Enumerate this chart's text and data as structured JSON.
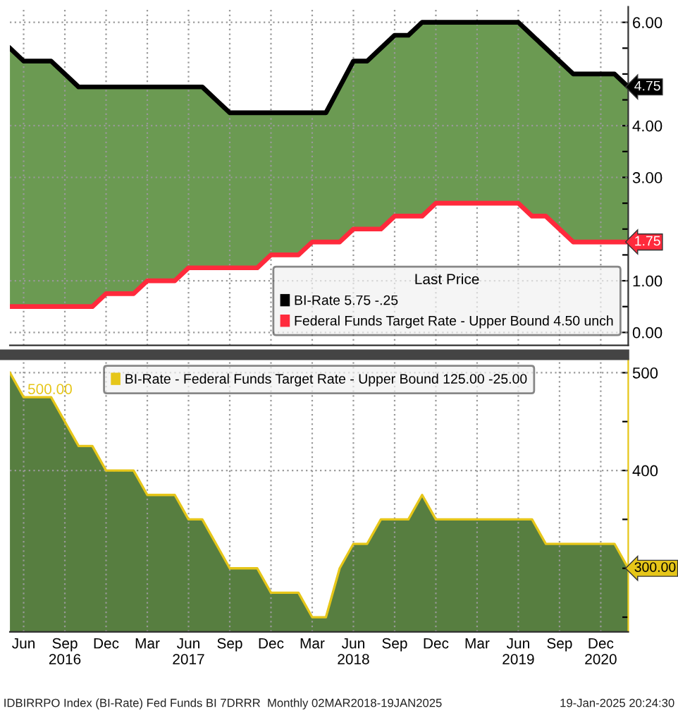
{
  "chart_data": [
    {
      "type": "line",
      "categories": [
        null,
        null,
        null,
        null,
        null,
        null,
        null,
        null,
        null,
        null,
        null,
        null,
        null,
        null,
        null,
        null,
        null,
        null,
        null,
        null,
        null,
        null,
        null,
        null,
        null,
        null,
        null,
        null,
        null,
        null,
        null,
        null,
        null,
        null,
        null,
        null,
        null,
        null,
        null,
        null,
        null,
        null,
        null,
        null,
        null,
        null
      ],
      "series": [
        {
          "name": "BI-Rate 5.75 -.25",
          "color": "#000000",
          "values": [
            5.5,
            5.25,
            5.25,
            5.25,
            5.0,
            4.75,
            4.75,
            4.75,
            4.75,
            4.75,
            4.75,
            4.75,
            4.75,
            4.75,
            4.75,
            4.5,
            4.25,
            4.25,
            4.25,
            4.25,
            4.25,
            4.25,
            4.25,
            4.25,
            4.75,
            5.25,
            5.25,
            5.5,
            5.75,
            5.75,
            6.0,
            6.0,
            6.0,
            6.0,
            6.0,
            6.0,
            6.0,
            6.0,
            5.75,
            5.5,
            5.25,
            5.0,
            5.0,
            5.0,
            5.0,
            4.75
          ],
          "upper": [
            5.5,
            5.25,
            5.25,
            5.25,
            5.0,
            4.75,
            4.75,
            4.75,
            4.75,
            4.75,
            4.75,
            4.75,
            4.75,
            4.75,
            4.75,
            4.5,
            4.25,
            4.25,
            4.25,
            4.25,
            4.25,
            4.25,
            4.25,
            4.25,
            4.75,
            5.25,
            5.25,
            5.5,
            5.75,
            5.75,
            6.0,
            6.0,
            6.0,
            6.0,
            6.0,
            6.0,
            6.0,
            6.0,
            5.75,
            5.5,
            5.25,
            5.0,
            5.0,
            5.0,
            5.0,
            4.75
          ],
          "lower": [
            0.5,
            0.5,
            0.5,
            0.5,
            0.5,
            0.5,
            0.5,
            0.75,
            0.75,
            0.75,
            1.0,
            1.0,
            1.0,
            1.25,
            1.25,
            1.25,
            1.25,
            1.25,
            1.25,
            1.5,
            1.5,
            1.5,
            1.75,
            1.75,
            1.75,
            2.0,
            2.0,
            2.0,
            2.25,
            2.25,
            2.25,
            2.5,
            2.5,
            2.5,
            2.5,
            2.5,
            2.5,
            2.5,
            2.25,
            2.25,
            2.0,
            1.75,
            1.75,
            1.75,
            1.75,
            1.75
          ]
        },
        {
          "name": "Federal Funds Target Rate - Upper Bound 4.50 unch",
          "color": "#ff2a3c",
          "values": [
            0.5,
            0.5,
            0.5,
            0.5,
            0.5,
            0.5,
            0.5,
            0.75,
            0.75,
            0.75,
            1.0,
            1.0,
            1.0,
            1.25,
            1.25,
            1.25,
            1.25,
            1.25,
            1.25,
            1.5,
            1.5,
            1.5,
            1.75,
            1.75,
            1.75,
            2.0,
            2.0,
            2.0,
            2.25,
            2.25,
            2.25,
            2.5,
            2.5,
            2.5,
            2.5,
            2.5,
            2.5,
            2.5,
            2.25,
            2.25,
            2.0,
            1.75,
            1.75,
            1.75,
            1.75,
            1.75
          ]
        }
      ],
      "ylim": [
        -0.25,
        6.3
      ],
      "yticks": [
        {
          "value": 0,
          "label": "0.00"
        },
        {
          "value": 0.5,
          "label": null
        },
        {
          "value": 1,
          "label": "1.00"
        },
        {
          "value": 1.5,
          "label": null
        },
        {
          "value": 2,
          "label": null
        },
        {
          "value": 2.5,
          "label": null
        },
        {
          "value": 3,
          "label": "3.00"
        },
        {
          "value": 3.5,
          "label": null
        },
        {
          "value": 4,
          "label": "4.00"
        },
        {
          "value": 4.5,
          "label": null
        },
        {
          "value": 5,
          "label": null
        },
        {
          "value": 5.5,
          "label": null
        },
        {
          "value": 6,
          "label": "6.00"
        }
      ],
      "legend_title": "Last Price",
      "legend": "bottom right",
      "grid": true,
      "tick_labels": "y",
      "annotations": [
        "4.75",
        "1.75"
      ]
    },
    {
      "type": "area",
      "categories": [
        null,
        "Jun",
        null,
        null,
        "Sep\n2016",
        null,
        null,
        "Dec",
        null,
        null,
        "Mar",
        null,
        null,
        "Jun\n2017",
        null,
        null,
        "Sep",
        null,
        null,
        "Dec",
        null,
        null,
        "Mar",
        null,
        null,
        "Jun\n2018",
        null,
        null,
        "Sep",
        null,
        null,
        "Dec",
        null,
        null,
        "Mar",
        null,
        null,
        "Jun\n2019",
        null,
        null,
        "Sep",
        null,
        null,
        "Dec\n2020",
        null,
        null
      ],
      "series": [
        {
          "name": "BI-Rate - Federal Funds Target Rate - Upper Bound 125.00 -25.00",
          "color": "#e6c619",
          "values": [
            500,
            475,
            475,
            475,
            450,
            425,
            425,
            400,
            400,
            400,
            375,
            375,
            375,
            350,
            350,
            325,
            300,
            300,
            300,
            275,
            275,
            275,
            250,
            250,
            300,
            325,
            325,
            350,
            350,
            350,
            375,
            350,
            350,
            350,
            350,
            350,
            350,
            350,
            350,
            325,
            325,
            325,
            325,
            325,
            325,
            300
          ]
        }
      ],
      "ylim": [
        235,
        514
      ],
      "yticks": [
        {
          "value": 250,
          "label": null
        },
        {
          "value": 300,
          "label": null
        },
        {
          "value": 350,
          "label": null
        },
        {
          "value": 400,
          "label": "400"
        },
        {
          "value": 450,
          "label": null
        },
        {
          "value": 500,
          "label": "500"
        }
      ],
      "legend": "top",
      "grid": true,
      "annotations": [
        "500.00",
        "300.00",
        "IDBIRRPO Index (BI-Rate) Fed Funds BI 7DRRR  Monthly 02MAR2018-19JAN2025",
        "19-Jan-2025 20:24:30"
      ]
    }
  ]
}
